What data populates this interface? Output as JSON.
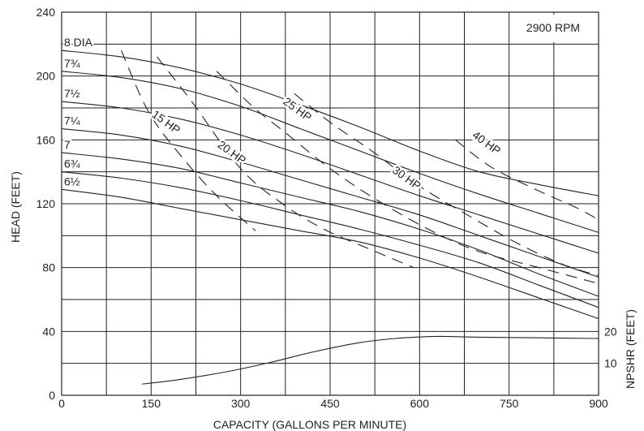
{
  "chart_data": {
    "type": "line",
    "speed_label": "2900 RPM",
    "xlabel": "CAPACITY (GALLONS PER MINUTE)",
    "ylabel": "HEAD (FEET)",
    "y2label": "NPSHR (FEET)",
    "xlim": [
      0,
      900
    ],
    "ylim": [
      0,
      240
    ],
    "x_ticks": [
      0,
      150,
      300,
      450,
      600,
      750,
      900
    ],
    "x_tick_labels": [
      "0",
      "150",
      "300",
      "450",
      "600",
      "750",
      "900"
    ],
    "y_ticks": [
      0,
      40,
      80,
      120,
      160,
      200,
      240
    ],
    "y_tick_labels": [
      "0",
      "40",
      "80",
      "120",
      "160",
      "200",
      "240"
    ],
    "y2_ticks": [
      10,
      20
    ],
    "y2_tick_labels": [
      "10",
      "20"
    ],
    "grid": true,
    "impeller_curves": [
      {
        "name": "8 DIA",
        "x": [
          0,
          100,
          200,
          300,
          400,
          500,
          600,
          700,
          800,
          900
        ],
        "y": [
          216,
          212,
          205,
          195,
          182,
          168,
          153,
          140,
          132,
          125
        ]
      },
      {
        "name": "7¾",
        "x": [
          0,
          100,
          200,
          300,
          400,
          500,
          600,
          700,
          800,
          900
        ],
        "y": [
          203,
          199,
          192,
          181,
          167,
          153,
          139,
          126,
          114,
          102
        ]
      },
      {
        "name": "7½",
        "x": [
          0,
          100,
          200,
          300,
          400,
          500,
          600,
          700,
          800,
          900
        ],
        "y": [
          184,
          180,
          173,
          163,
          151,
          138,
          125,
          113,
          101,
          89
        ]
      },
      {
        "name": "7¼",
        "x": [
          0,
          100,
          200,
          300,
          400,
          500,
          600,
          700,
          800,
          900
        ],
        "y": [
          167,
          163,
          156,
          146,
          135,
          124,
          113,
          100,
          87,
          74
        ]
      },
      {
        "name": "7",
        "x": [
          0,
          100,
          200,
          300,
          400,
          500,
          600,
          700,
          800,
          900
        ],
        "y": [
          152,
          148,
          142,
          133,
          124,
          115,
          104,
          91,
          76,
          62
        ]
      },
      {
        "name": "6¾",
        "x": [
          0,
          100,
          200,
          300,
          400,
          500,
          600,
          700,
          800,
          900
        ],
        "y": [
          140,
          136,
          130,
          122,
          113,
          104,
          94,
          83,
          69,
          55
        ]
      },
      {
        "name": "6½",
        "x": [
          0,
          100,
          200,
          300,
          400,
          500,
          600,
          700,
          800,
          900
        ],
        "y": [
          129,
          124,
          117,
          110,
          103,
          96,
          86,
          74,
          61,
          48
        ]
      }
    ],
    "hp_lines": [
      {
        "name": "15 HP",
        "x": [
          100,
          145,
          200,
          260,
          325
        ],
        "y": [
          216,
          178,
          150,
          125,
          103
        ]
      },
      {
        "name": "20 HP",
        "x": [
          160,
          220,
          300,
          370,
          440,
          520,
          590
        ],
        "y": [
          212,
          183,
          142,
          120,
          104,
          91,
          80
        ]
      },
      {
        "name": "25 HP",
        "x": [
          260,
          320,
          380,
          450,
          530,
          620,
          700,
          800,
          900
        ],
        "y": [
          203,
          181,
          163,
          142,
          122,
          103,
          90,
          80,
          70
        ]
      },
      {
        "name": "30 HP",
        "x": [
          390,
          450,
          520,
          600,
          680,
          760,
          840,
          900
        ],
        "y": [
          189,
          171,
          153,
          131,
          113,
          96,
          82,
          75
        ]
      },
      {
        "name": "40 HP",
        "x": [
          660,
          720,
          800,
          860,
          900
        ],
        "y": [
          160,
          143,
          128,
          118,
          110
        ]
      }
    ],
    "npshr_curve": {
      "name": "NPSHR",
      "x": [
        135,
        200,
        280,
        350,
        420,
        500,
        560,
        620,
        650,
        700,
        800,
        900
      ],
      "y": [
        3.5,
        5.0,
        7.5,
        10.3,
        13.5,
        16.5,
        17.8,
        18.4,
        18.4,
        18.2,
        18.0,
        17.8
      ]
    }
  }
}
